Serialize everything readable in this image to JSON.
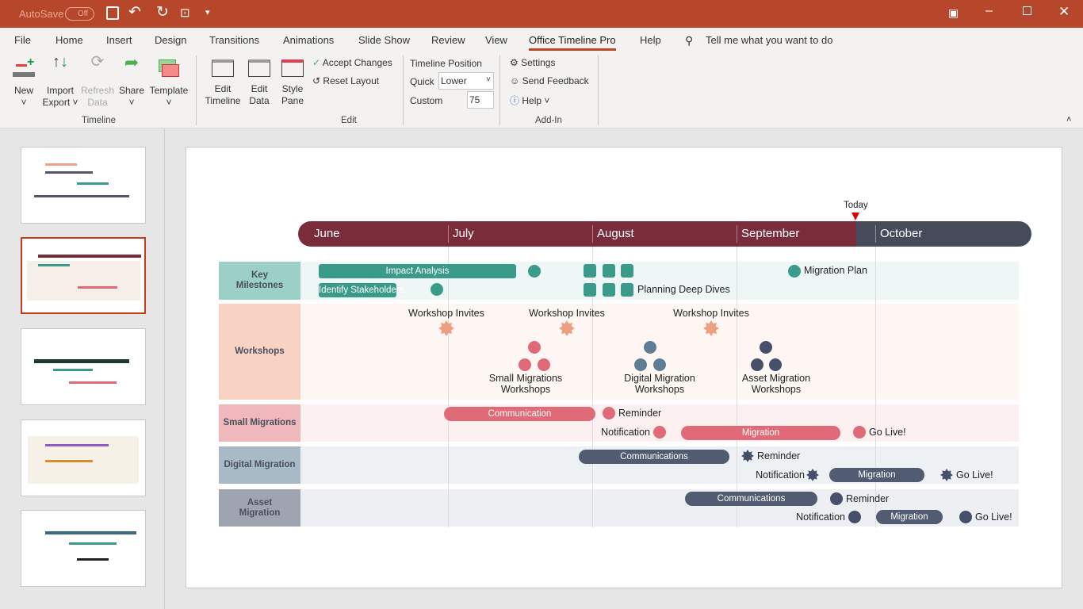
{
  "titlebar": {
    "autosave_label": "AutoSave",
    "autosave_state": "Off"
  },
  "tabs": [
    "File",
    "Home",
    "Insert",
    "Design",
    "Transitions",
    "Animations",
    "Slide Show",
    "Review",
    "View",
    "Office Timeline Pro",
    "Help"
  ],
  "active_tab": "Office Timeline Pro",
  "tell_me": "Tell me what you want to do",
  "ribbon": {
    "timeline_group": {
      "label": "Timeline",
      "new": "New",
      "import": "Import",
      "export": "Export",
      "refresh": "Refresh",
      "data": "Data",
      "share": "Share",
      "template": "Template"
    },
    "edit_group": {
      "label": "Edit",
      "edit": "Edit",
      "timeline": "Timeline",
      "data": "Data",
      "style": "Style",
      "pane": "Pane",
      "accept": "Accept Changes",
      "reset": "Reset Layout"
    },
    "position": {
      "title": "Timeline Position",
      "quick_label": "Quick",
      "quick_value": "Lower",
      "custom_label": "Custom",
      "custom_value": "75"
    },
    "addin_group": {
      "label": "Add-In",
      "settings": "Settings",
      "feedback": "Send Feedback",
      "help": "Help"
    }
  },
  "colors": {
    "accent": "#b7472a",
    "teal": "#3a9b8a",
    "salmon": "#eda081",
    "pink": "#e06a78",
    "steel": "#5f7d95",
    "navy": "#46506a",
    "month_past": "#7b2c3a",
    "month_future": "#464a5a"
  },
  "timeline": {
    "today": "Today",
    "months": [
      "June",
      "July",
      "August",
      "September",
      "October"
    ],
    "lanes": [
      "Key Milestones",
      "Workshops",
      "Small Migrations",
      "Digital Migration",
      "Asset Migration"
    ],
    "key_milestones": {
      "impact": "Impact Analysis",
      "stakeholders": "Identify Stakeholders",
      "deep_dives": "Planning Deep Dives",
      "migration_plan": "Migration Plan"
    },
    "workshops": {
      "invites": "Workshop Invites",
      "small": "Small Migrations Workshops",
      "digital": "Digital Migration Workshops",
      "asset": "Asset Migration Workshops"
    },
    "small_migrations": {
      "communication": "Communication",
      "reminder": "Reminder",
      "notification": "Notification",
      "migration": "Migration",
      "golive": "Go Live!"
    },
    "digital_migration": {
      "communications": "Communications",
      "reminder": "Reminder",
      "notification": "Notification",
      "migration": "Migration",
      "golive": "Go Live!"
    },
    "asset_migration": {
      "communications": "Communications",
      "reminder": "Reminder",
      "notification": "Notification",
      "migration": "Migration",
      "golive": "Go Live!"
    }
  }
}
